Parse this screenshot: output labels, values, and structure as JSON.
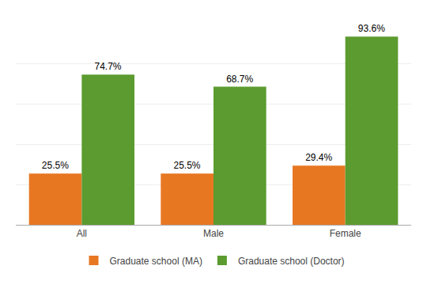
{
  "chart_data": {
    "type": "bar",
    "categories": [
      "All",
      "Male",
      "Female"
    ],
    "series": [
      {
        "name": "Graduate school (MA)",
        "color": "#E87722",
        "values": [
          25.5,
          25.5,
          29.4
        ],
        "value_labels": [
          "25.5%",
          "25.5%",
          "29.4%"
        ]
      },
      {
        "name": "Graduate school (Doctor)",
        "color": "#5B9B2F",
        "values": [
          74.7,
          68.7,
          93.6
        ],
        "value_labels": [
          "74.7%",
          "68.7%",
          "93.6%"
        ]
      }
    ],
    "ylim": [
      0,
      100
    ],
    "yticks": [
      20,
      40,
      60,
      80,
      100
    ],
    "grid": true,
    "legend": "bottom",
    "data_labels": true,
    "tick_labels": "x"
  }
}
